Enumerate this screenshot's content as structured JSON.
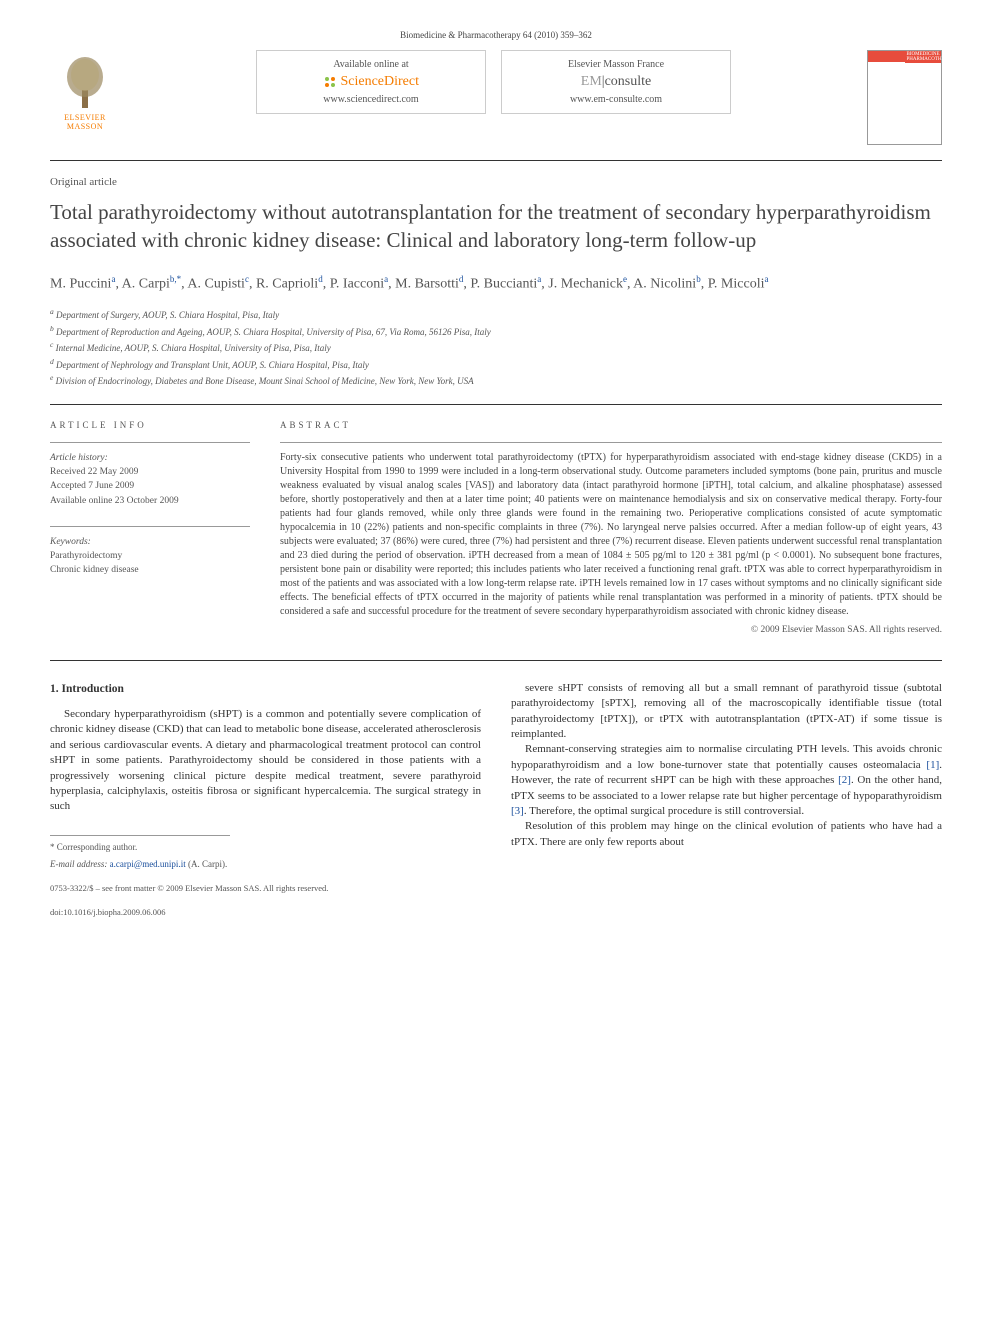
{
  "journal_ref": "Biomedicine & Pharmacotherapy 64 (2010) 359–362",
  "publisher_logo": "ELSEVIER MASSON",
  "avail_box1": {
    "top": "Available online at",
    "brand": "ScienceDirect",
    "url": "www.sciencedirect.com"
  },
  "avail_box2": {
    "top": "Elsevier Masson France",
    "brand": "EMconsulte",
    "url": "www.em-consulte.com"
  },
  "thumbnail_label": "BIOMEDICINE PHARMACOTHERAPY",
  "article_type": "Original article",
  "title": "Total parathyroidectomy without autotransplantation for the treatment of secondary hyperparathyroidism associated with chronic kidney disease: Clinical and laboratory long-term follow-up",
  "authors_html": "M. Puccini<span class='sup'>a</span>, A. Carpi<span class='sup'>b,*</span>, A. Cupisti<span class='sup'>c</span>, R. Caprioli<span class='sup'>d</span>, P. Iacconi<span class='sup'>a</span>, M. Barsotti<span class='sup'>d</span>, P. Buccianti<span class='sup'>a</span>, J. Mechanick<span class='sup'>e</span>, A. Nicolini<span class='sup'>b</span>, P. Miccoli<span class='sup'>a</span>",
  "affiliations": [
    {
      "sup": "a",
      "text": "Department of Surgery, AOUP, S. Chiara Hospital, Pisa, Italy"
    },
    {
      "sup": "b",
      "text": "Department of Reproduction and Ageing, AOUP, S. Chiara Hospital, University of Pisa, 67, Via Roma, 56126 Pisa, Italy"
    },
    {
      "sup": "c",
      "text": "Internal Medicine, AOUP, S. Chiara Hospital, University of Pisa, Pisa, Italy"
    },
    {
      "sup": "d",
      "text": "Department of Nephrology and Transplant Unit, AOUP, S. Chiara Hospital, Pisa, Italy"
    },
    {
      "sup": "e",
      "text": "Division of Endocrinology, Diabetes and Bone Disease, Mount Sinai School of Medicine, New York, New York, USA"
    }
  ],
  "info_label": "ARTICLE INFO",
  "abstract_label": "ABSTRACT",
  "history": {
    "title": "Article history:",
    "received": "Received 22 May 2009",
    "accepted": "Accepted 7 June 2009",
    "online": "Available online 23 October 2009"
  },
  "keywords": {
    "title": "Keywords:",
    "items": [
      "Parathyroidectomy",
      "Chronic kidney disease"
    ]
  },
  "abstract": "Forty-six consecutive patients who underwent total parathyroidectomy (tPTX) for hyperparathyroidism associated with end-stage kidney disease (CKD5) in a University Hospital from 1990 to 1999 were included in a long-term observational study. Outcome parameters included symptoms (bone pain, pruritus and muscle weakness evaluated by visual analog scales [VAS]) and laboratory data (intact parathyroid hormone [iPTH], total calcium, and alkaline phosphatase) assessed before, shortly postoperatively and then at a later time point; 40 patients were on maintenance hemodialysis and six on conservative medical therapy. Forty-four patients had four glands removed, while only three glands were found in the remaining two. Perioperative complications consisted of acute symptomatic hypocalcemia in 10 (22%) patients and non-specific complaints in three (7%). No laryngeal nerve palsies occurred. After a median follow-up of eight years, 43 subjects were evaluated; 37 (86%) were cured, three (7%) had persistent and three (7%) recurrent disease. Eleven patients underwent successful renal transplantation and 23 died during the period of observation. iPTH decreased from a mean of 1084 ± 505 pg/ml to 120 ± 381 pg/ml (p < 0.0001). No subsequent bone fractures, persistent bone pain or disability were reported; this includes patients who later received a functioning renal graft. tPTX was able to correct hyperparathyroidism in most of the patients and was associated with a low long-term relapse rate. iPTH levels remained low in 17 cases without symptoms and no clinically significant side effects. The beneficial effects of tPTX occurred in the majority of patients while renal transplantation was performed in a minority of patients. tPTX should be considered a safe and successful procedure for the treatment of severe secondary hyperparathyroidism associated with chronic kidney disease.",
  "copyright": "© 2009 Elsevier Masson SAS. All rights reserved.",
  "intro_heading": "1. Introduction",
  "col1_p1": "Secondary hyperparathyroidism (sHPT) is a common and potentially severe complication of chronic kidney disease (CKD) that can lead to metabolic bone disease, accelerated atherosclerosis and serious cardiovascular events. A dietary and pharmacological treatment protocol can control sHPT in some patients. Parathyroidectomy should be considered in those patients with a progressively worsening clinical picture despite medical treatment, severe parathyroid hyperplasia, calciphylaxis, osteitis fibrosa or significant hypercalcemia. The surgical strategy in such",
  "col2_p1_pre": "severe sHPT consists of removing all but a small remnant of parathyroid tissue (subtotal parathyroidectomy [sPTX], removing all of the macroscopically identifiable tissue (total parathyroidectomy [tPTX]), or tPTX with autotransplantation (tPTX-AT) if some tissue is reimplanted.",
  "col2_p2": "Remnant-conserving strategies aim to normalise circulating PTH levels. This avoids chronic hypoparathyroidism and a low bone-turnover state that potentially causes osteomalacia [1]. However, the rate of recurrent sHPT can be high with these approaches [2]. On the other hand, tPTX seems to be associated to a lower relapse rate but higher percentage of hypoparathyroidism [3]. Therefore, the optimal surgical procedure is still controversial.",
  "col2_p3": "Resolution of this problem may hinge on the clinical evolution of patients who have had a tPTX. There are only few reports about",
  "corresponding": "* Corresponding author.",
  "email_label": "E-mail address:",
  "email": "a.carpi@med.unipi.it",
  "email_person": "(A. Carpi).",
  "front_matter": "0753-3322/$ – see front matter © 2009 Elsevier Masson SAS. All rights reserved.",
  "doi": "doi:10.1016/j.biopha.2009.06.006",
  "colors": {
    "orange": "#f57c00",
    "link": "#1a4f9c",
    "red": "#e74c3c",
    "text": "#333333",
    "muted": "#555555"
  }
}
